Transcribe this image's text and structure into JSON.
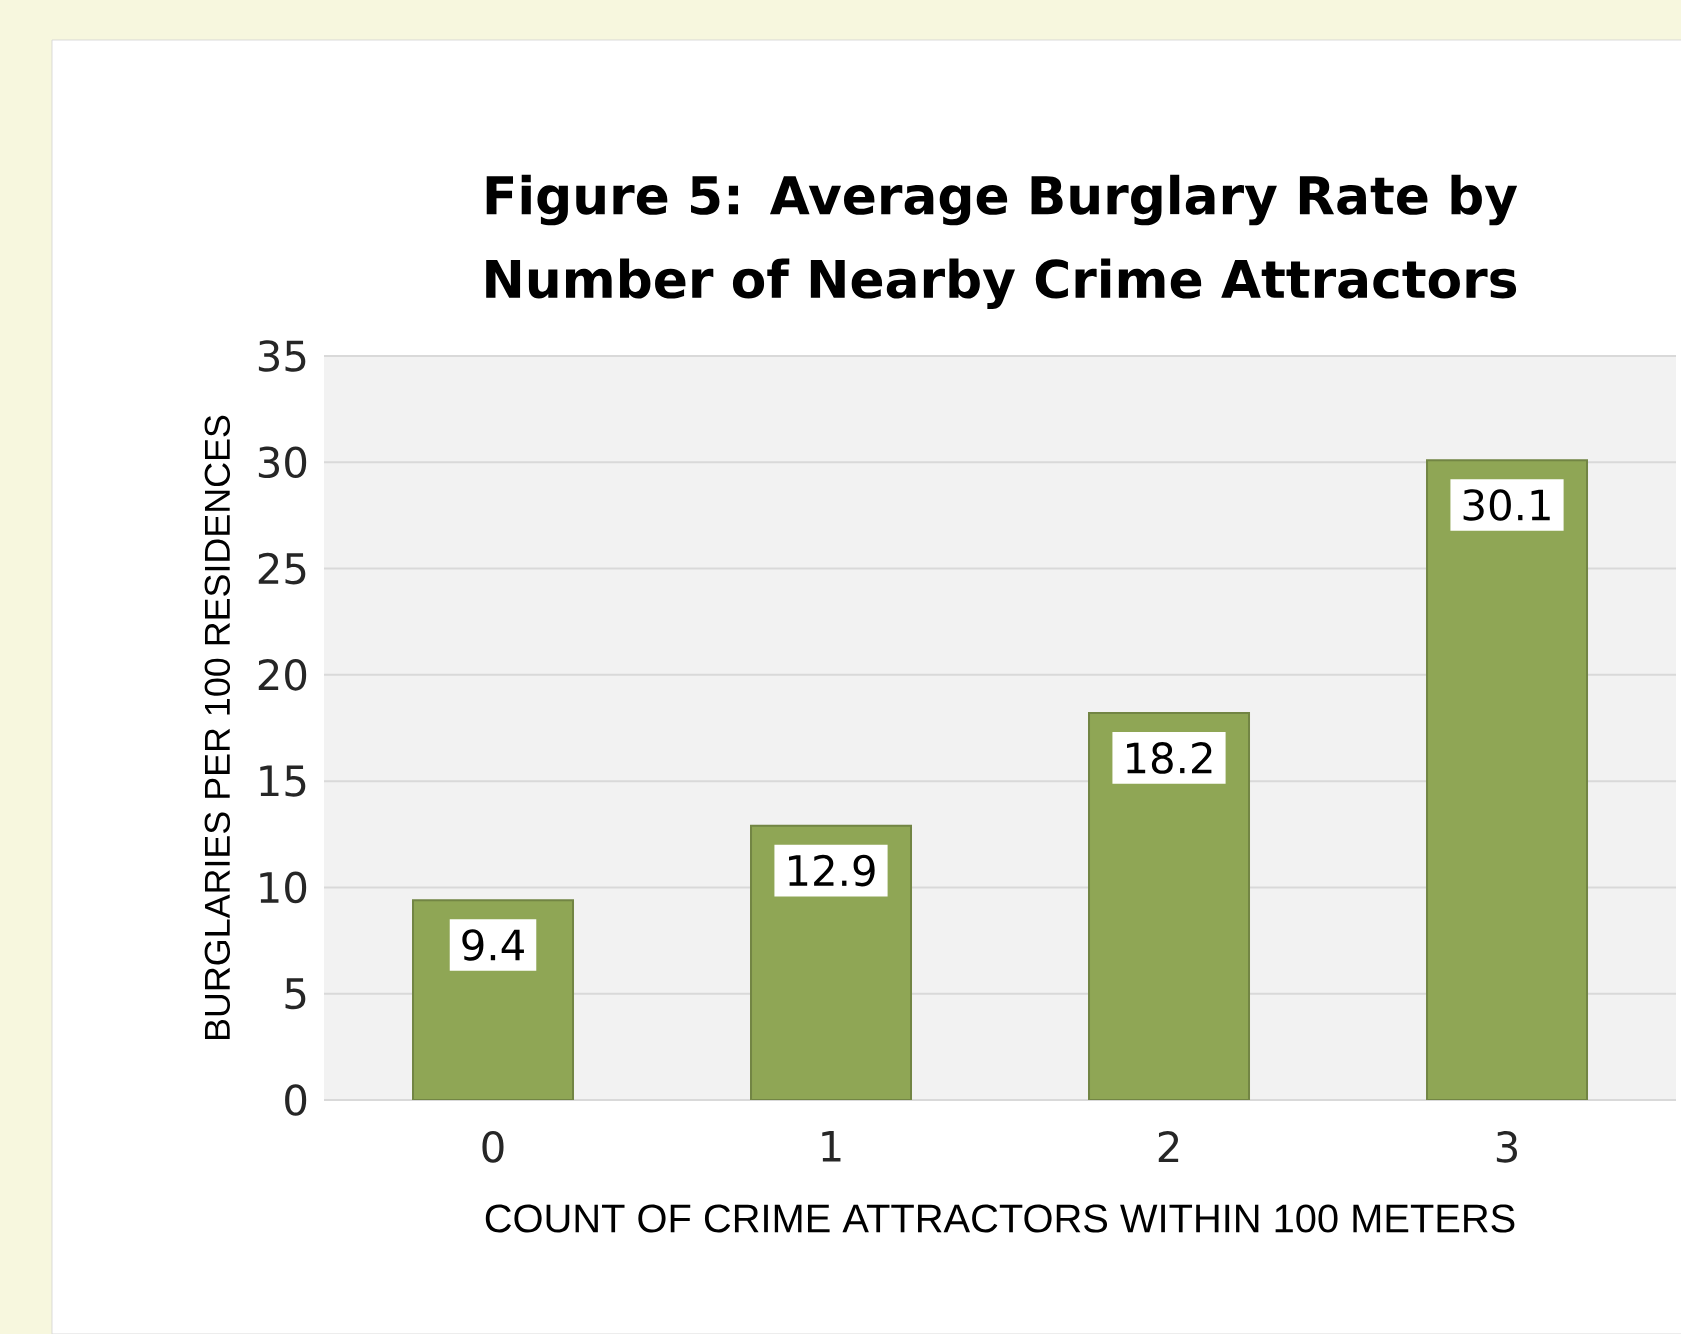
{
  "chart_data": {
    "type": "bar",
    "title": "Figure 5: Average Burglary Rate by Number of Nearby Crime Attractors",
    "xlabel": "COUNT OF CRIME ATTRACTORS WITHIN 100 METERS",
    "ylabel": "BURGLARIES PER 100 RESIDENCES",
    "categories": [
      "0",
      "1",
      "2",
      "3"
    ],
    "values": [
      9.4,
      12.9,
      18.2,
      30.1
    ],
    "color": "#8fa655",
    "ylim": [
      0,
      35
    ],
    "yticks": [
      0,
      5,
      10,
      15,
      20,
      25,
      30,
      35
    ],
    "grid": "y",
    "data_labels": true
  }
}
